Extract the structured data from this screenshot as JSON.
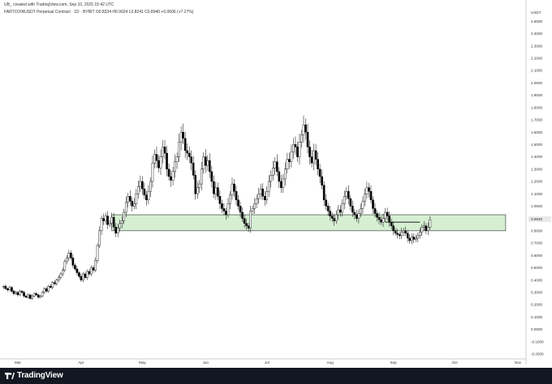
{
  "header": {
    "credit": "UB_ created with TradingView.com, Sep 10, 2025 15:42 UTC",
    "symbol_line": "FARTCOINUSDT Perpetual Contract · 1D · BYBIT  O0.8334  H0.9024  L0.8241  C0.8940  +0.0606 (+7.27%)"
  },
  "footer": {
    "brand": "TradingView",
    "logo_icon": "tradingview-logo-icon"
  },
  "colors": {
    "up": "#ffffff",
    "down": "#000000",
    "wick": "#000000",
    "zone_fill": "#d6efd3",
    "zone_stroke": "#2a2a2a",
    "footer_bg": "#131722",
    "last_price_bg": "#e9e9e9"
  },
  "chart_data": {
    "type": "candlestick",
    "currency_label": "USDT",
    "y_ticks": [
      "2.5000",
      "2.4000",
      "2.3000",
      "2.2000",
      "2.1000",
      "2.0000",
      "1.9000",
      "1.8000",
      "1.7000",
      "1.6000",
      "1.5000",
      "1.4000",
      "1.3000",
      "1.2000",
      "1.1000",
      "1.0000",
      "0.8000",
      "0.7000",
      "0.6000",
      "0.5000",
      "0.4000",
      "0.3000",
      "0.2000",
      "0.1000",
      "0.0000",
      "-0.1000",
      "-0.2000"
    ],
    "ylim": [
      -0.22,
      2.62
    ],
    "last_price_label": "0.8940",
    "last_price": 0.894,
    "x_ticks": [
      {
        "label": "Mar",
        "date": "2025-03-01"
      },
      {
        "label": "Apr",
        "date": "2025-04-01"
      },
      {
        "label": "May",
        "date": "2025-05-01"
      },
      {
        "label": "Jun",
        "date": "2025-06-01"
      },
      {
        "label": "Jul",
        "date": "2025-07-01"
      },
      {
        "label": "Aug",
        "date": "2025-08-01"
      },
      {
        "label": "Sep",
        "date": "2025-09-01"
      },
      {
        "label": "Oct",
        "date": "2025-10-01"
      },
      {
        "label": "Nov",
        "date": "2025-11-01"
      }
    ],
    "series_start_date": "2025-02-22",
    "closes": [
      0.35,
      0.33,
      0.32,
      0.34,
      0.31,
      0.29,
      0.3,
      0.28,
      0.31,
      0.3,
      0.27,
      0.26,
      0.28,
      0.25,
      0.27,
      0.29,
      0.28,
      0.26,
      0.27,
      0.3,
      0.33,
      0.31,
      0.35,
      0.34,
      0.38,
      0.37,
      0.4,
      0.42,
      0.45,
      0.48,
      0.55,
      0.58,
      0.62,
      0.58,
      0.52,
      0.49,
      0.46,
      0.43,
      0.4,
      0.45,
      0.42,
      0.47,
      0.45,
      0.5,
      0.48,
      0.56,
      0.68,
      0.8,
      0.9,
      0.88,
      0.92,
      0.85,
      0.86,
      0.91,
      0.83,
      0.78,
      0.82,
      0.86,
      0.88,
      0.95,
      1.03,
      1.08,
      1.04,
      1.0,
      1.02,
      1.1,
      1.16,
      1.2,
      1.14,
      1.09,
      1.05,
      1.12,
      1.2,
      1.35,
      1.42,
      1.37,
      1.31,
      1.4,
      1.48,
      1.43,
      1.3,
      1.24,
      1.21,
      1.28,
      1.36,
      1.4,
      1.52,
      1.6,
      1.55,
      1.45,
      1.43,
      1.4,
      1.35,
      1.25,
      1.1,
      1.15,
      1.18,
      1.3,
      1.4,
      1.33,
      1.37,
      1.28,
      1.2,
      1.1,
      1.15,
      1.08,
      1.02,
      0.98,
      0.96,
      0.93,
      1.02,
      1.09,
      1.18,
      1.12,
      1.05,
      1.0,
      0.95,
      0.9,
      0.86,
      0.84,
      0.82,
      0.96,
      0.98,
      1.02,
      1.06,
      1.1,
      1.14,
      1.08,
      1.05,
      1.12,
      1.2,
      1.25,
      1.31,
      1.36,
      1.28,
      1.2,
      1.15,
      1.22,
      1.3,
      1.38,
      1.36,
      1.44,
      1.5,
      1.48,
      1.4,
      1.52,
      1.58,
      1.66,
      1.6,
      1.48,
      1.4,
      1.35,
      1.45,
      1.38,
      1.3,
      1.24,
      1.17,
      1.05,
      1.0,
      0.96,
      0.92,
      0.9,
      0.88,
      0.93,
      0.97,
      0.95,
      1.02,
      1.08,
      1.12,
      1.06,
      1.0,
      0.95,
      0.93,
      0.9,
      0.94,
      0.98,
      1.04,
      1.1,
      1.15,
      1.12,
      1.05,
      0.98,
      0.94,
      0.91,
      0.89,
      0.87,
      0.9,
      0.95,
      0.92,
      0.87,
      0.84,
      0.8,
      0.78,
      0.77,
      0.76,
      0.79,
      0.8,
      0.78,
      0.74,
      0.72,
      0.75,
      0.73,
      0.74,
      0.76,
      0.79,
      0.83,
      0.84,
      0.8,
      0.83,
      0.89
    ],
    "opens_from_prev_close": true,
    "support_zone": {
      "low": 0.8,
      "high": 0.93,
      "from": "2025-04-16",
      "to": "2025-10-26"
    },
    "breakout_line": {
      "price": 0.87,
      "from": "2025-08-28",
      "to": "2025-09-14"
    }
  }
}
